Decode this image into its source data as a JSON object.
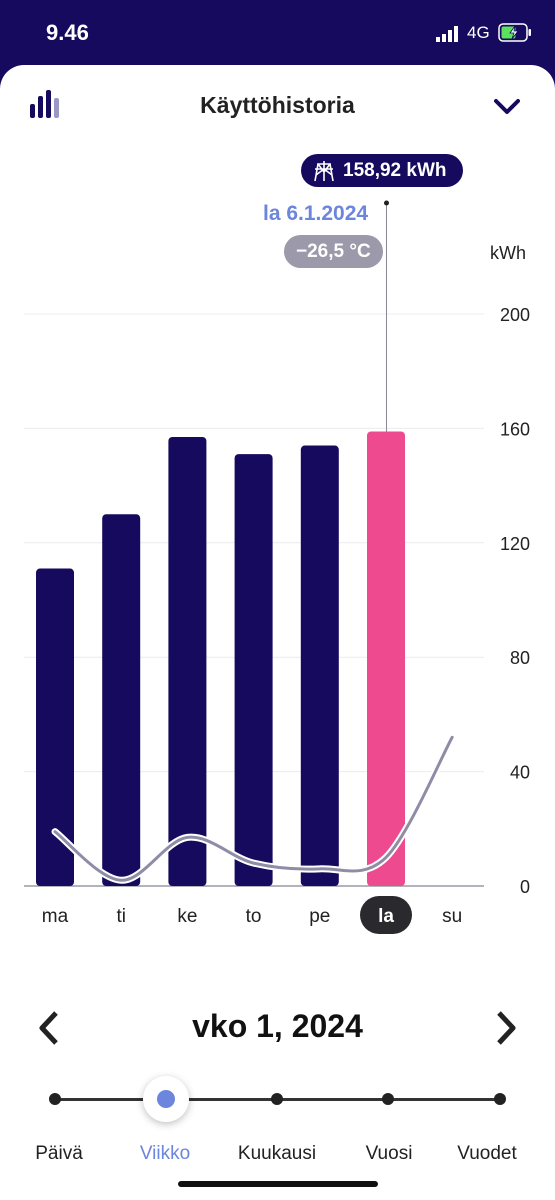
{
  "status_bar": {
    "time": "9.46",
    "network": "4G"
  },
  "header": {
    "title": "Käyttöhistoria"
  },
  "tooltip": {
    "value": "158,92 kWh",
    "date": "la 6.1.2024",
    "temperature": "−26,5 °C"
  },
  "period": {
    "label": "vko 1, 2024"
  },
  "slider": {
    "options": [
      "Päivä",
      "Viikko",
      "Kuukausi",
      "Vuosi",
      "Vuodet"
    ],
    "selected": "Viikko"
  },
  "colors": {
    "bar": "#150a5e",
    "selected_bar": "#ee4a8f",
    "accent": "#6c85dd",
    "temperature_line": "#8f8da6"
  },
  "chart_data": {
    "type": "bar",
    "categories": [
      "ma",
      "ti",
      "ke",
      "to",
      "pe",
      "la",
      "su"
    ],
    "series": [
      {
        "values": [
          111,
          130,
          157,
          151,
          154,
          158.92,
          null
        ]
      }
    ],
    "temperature_line": [
      19,
      2,
      17,
      8,
      6,
      10,
      52
    ],
    "selected_category": "la",
    "ylabel": "kWh",
    "ylim": [
      0,
      200
    ],
    "yticks": [
      "0",
      "40",
      "80",
      "120",
      "160",
      "200"
    ]
  }
}
